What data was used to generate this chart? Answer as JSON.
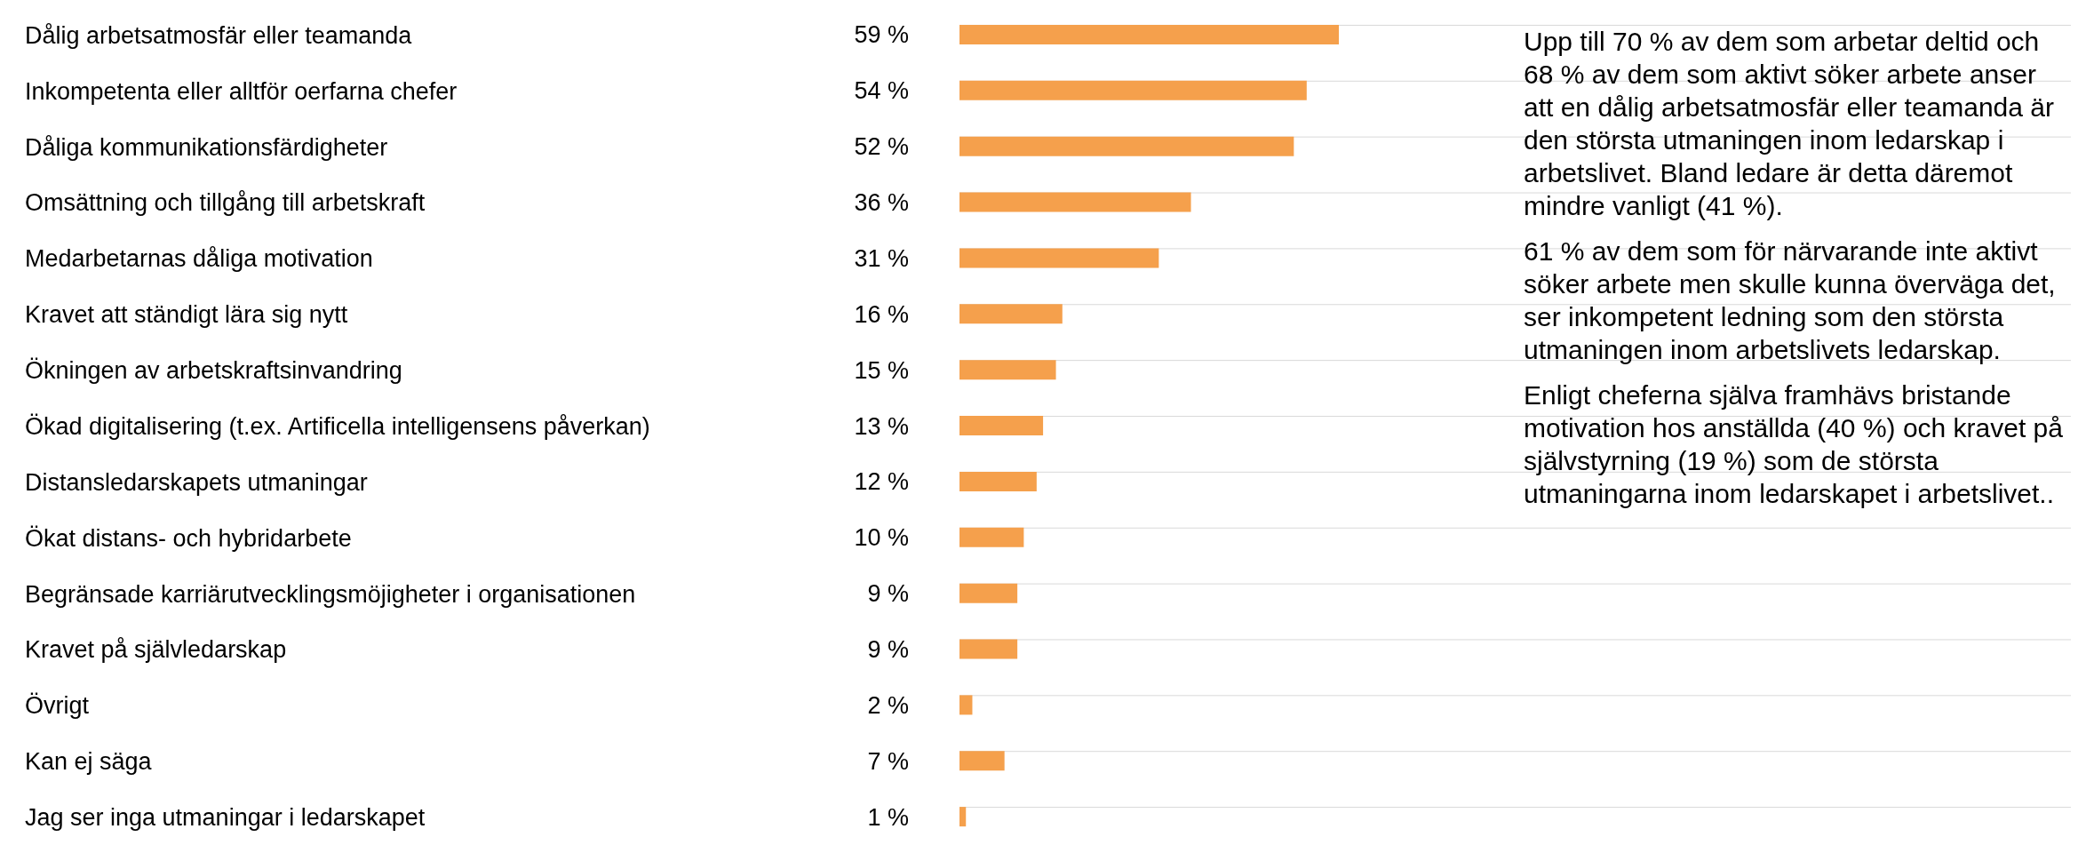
{
  "chart_data": {
    "type": "bar",
    "orientation": "horizontal",
    "relative": false,
    "grid": true,
    "categories": [
      "Dålig arbetsatmosfär eller teamanda",
      "Inkompetenta eller alltför oerfarna chefer",
      "Dåliga kommunikationsfärdigheter",
      "Omsättning och tillgång till arbetskraft",
      "Medarbetarnas dåliga motivation",
      "Kravet att ständigt lära sig nytt",
      "Ökningen av arbetskraftsinvandring",
      "Ökad digitalisering (t.ex. Artificella intelligensens påverkan)",
      "Distansledarskapets utmaningar",
      "Ökat distans- och hybridarbete",
      "Begränsade karriärutvecklingsmöjigheter i organisationen",
      "Kravet på självledarskap",
      "Övrigt",
      "Kan ej säga",
      "Jag ser inga utmaningar i ledarskapet"
    ],
    "values": [
      59,
      54,
      52,
      36,
      31,
      16,
      15,
      13,
      12,
      10,
      9,
      9,
      2,
      7,
      1
    ],
    "value_labels": [
      "59 %",
      "54 %",
      "52 %",
      "36 %",
      "31 %",
      "16 %",
      "15 %",
      "13 %",
      "12 %",
      "10 %",
      "9 %",
      "9 %",
      "2 %",
      "7 %",
      "1 %"
    ],
    "color": "#f5a04c",
    "annotations": [
      "Upp till 70 % av dem som arbetar deltid och 68 % av dem som aktivt söker arbete anser att en dålig arbetsatmosfär eller teamanda är den största utmaningen inom ledarskap i arbetslivet. Bland ledare är detta däremot mindre vanligt (41 %).",
      "61 % av dem som för närvarande inte aktivt söker arbete men skulle kunna överväga det, ser inkompetent ledning som den största utmaningen inom arbetslivets ledarskap.",
      "Enligt cheferna själva framhävs bristande motivation hos anställda (40 %) och kravet på självstyrning (19 %) som de största utmaningarna inom ledarskapet i arbetslivet.."
    ]
  }
}
